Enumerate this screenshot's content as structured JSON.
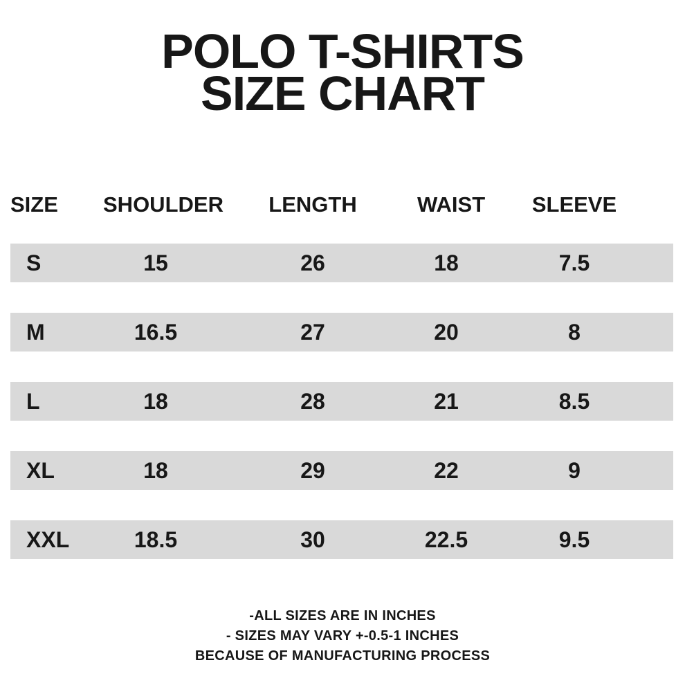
{
  "colors": {
    "background": "#ffffff",
    "text": "#171717",
    "row_band": "#d9d9d9"
  },
  "title": {
    "line1": "POLO T-SHIRTS",
    "line2": "SIZE CHART"
  },
  "table": {
    "columns": [
      "SIZE",
      "SHOULDER",
      "LENGTH",
      "WAIST",
      "SLEEVE"
    ],
    "rows": [
      [
        "S",
        "15",
        "26",
        "18",
        "7.5"
      ],
      [
        "M",
        "16.5",
        "27",
        "20",
        "8"
      ],
      [
        "L",
        "18",
        "28",
        "21",
        "8.5"
      ],
      [
        "XL",
        "18",
        "29",
        "22",
        "9"
      ],
      [
        "XXL",
        "18.5",
        "30",
        "22.5",
        "9.5"
      ]
    ]
  },
  "footnotes": [
    "-ALL SIZES ARE IN INCHES",
    "- SIZES MAY VARY +-0.5-1 INCHES",
    "BECAUSE OF MANUFACTURING PROCESS"
  ],
  "chart_data": {
    "type": "table",
    "title": "POLO T-SHIRTS SIZE CHART",
    "units": "inches",
    "columns": [
      "SIZE",
      "SHOULDER",
      "LENGTH",
      "WAIST",
      "SLEEVE"
    ],
    "rows": [
      {
        "size": "S",
        "shoulder": 15,
        "length": 26,
        "waist": 18,
        "sleeve": 7.5
      },
      {
        "size": "M",
        "shoulder": 16.5,
        "length": 27,
        "waist": 20,
        "sleeve": 8
      },
      {
        "size": "L",
        "shoulder": 18,
        "length": 28,
        "waist": 21,
        "sleeve": 8.5
      },
      {
        "size": "XL",
        "shoulder": 18,
        "length": 29,
        "waist": 22,
        "sleeve": 9
      },
      {
        "size": "XXL",
        "shoulder": 18.5,
        "length": 30,
        "waist": 22.5,
        "sleeve": 9.5
      }
    ],
    "notes": [
      "-ALL SIZES ARE IN INCHES",
      "- SIZES MAY VARY +-0.5-1 INCHES",
      "BECAUSE OF MANUFACTURING PROCESS"
    ],
    "layout_hints": {
      "row_striping": "every data row light gray band, white gaps between",
      "alignment": "size column left-aligned, measurement columns centered"
    }
  }
}
